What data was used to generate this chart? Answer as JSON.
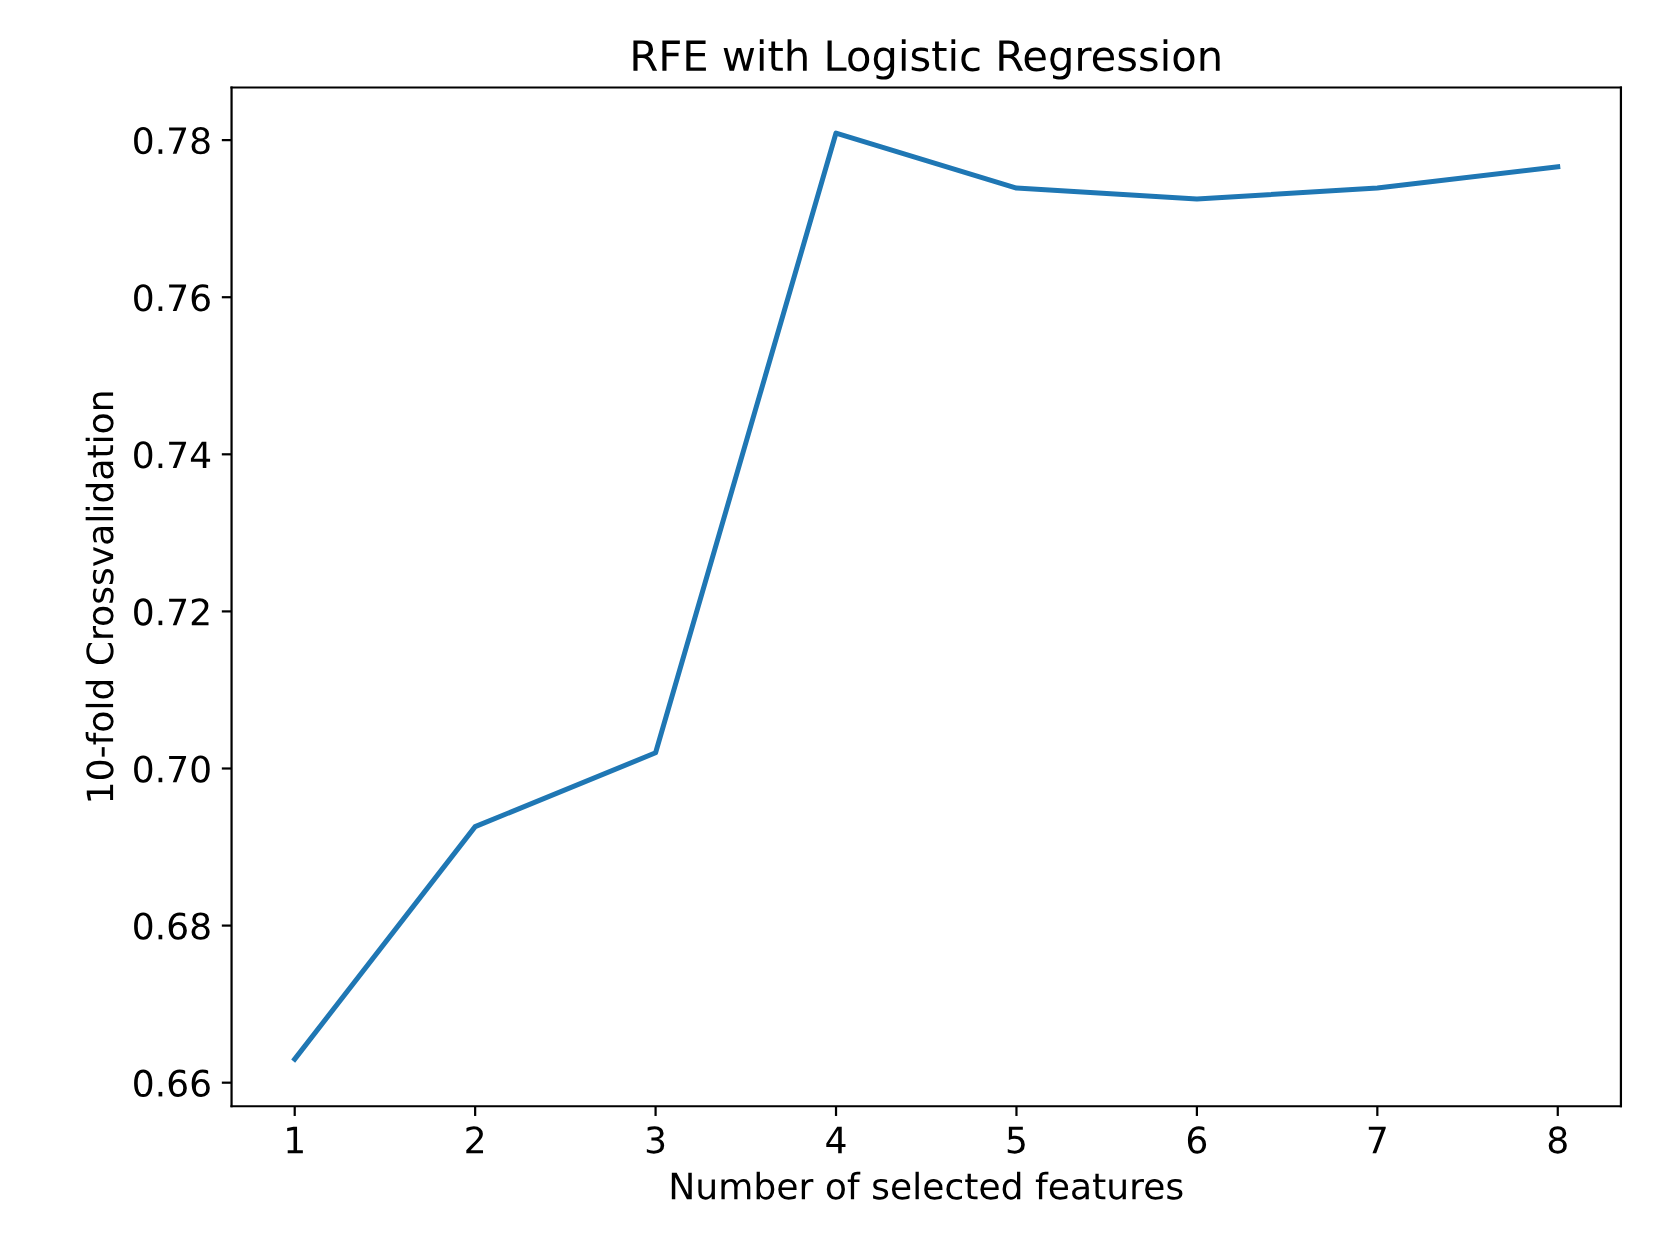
{
  "chart_data": {
    "type": "line",
    "title": "RFE with Logistic Regression",
    "xlabel": "Number of selected features",
    "ylabel": "10-fold Crossvalidation",
    "x": [
      1,
      2,
      3,
      4,
      5,
      6,
      7,
      8
    ],
    "series": [
      {
        "color": "#1f77b4",
        "values": [
          0.663,
          0.6926,
          0.702,
          0.7809,
          0.7739,
          0.7725,
          0.7739,
          0.7766
        ]
      }
    ],
    "xlim": [
      0.65,
      8.35
    ],
    "ylim": [
      0.657,
      0.7867
    ],
    "xticks": [
      1,
      2,
      3,
      4,
      5,
      6,
      7,
      8
    ],
    "yticks": [
      {
        "value": 0.66,
        "label": "0.66"
      },
      {
        "value": 0.68,
        "label": "0.68"
      },
      {
        "value": 0.7,
        "label": "0.70"
      },
      {
        "value": 0.72,
        "label": "0.72"
      },
      {
        "value": 0.74,
        "label": "0.74"
      },
      {
        "value": 0.76,
        "label": "0.76"
      },
      {
        "value": 0.78,
        "label": "0.78"
      }
    ],
    "grid": false,
    "legend": false,
    "marker": "none",
    "line_style": "solid"
  }
}
